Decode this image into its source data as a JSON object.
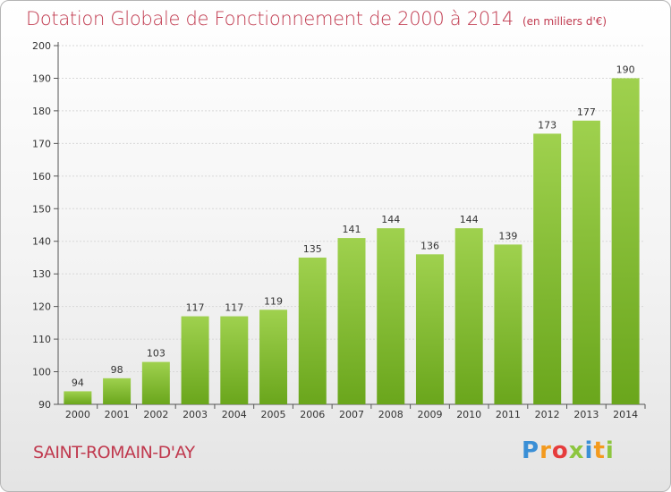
{
  "header": {
    "title": "Dotation Globale de Fonctionnement de 2000 à 2014",
    "unit": "(en milliers d'€)"
  },
  "commune": "SAINT-ROMAIN-D'AY",
  "brand": {
    "logo_text": "Proxiti",
    "letters": [
      {
        "ch": "P",
        "color": "#3a8fd6"
      },
      {
        "ch": "r",
        "color": "#f39a1e"
      },
      {
        "ch": "o",
        "color": "#e63c3c"
      },
      {
        "ch": "x",
        "color": "#8dc63f"
      },
      {
        "ch": "i",
        "color": "#3a8fd6"
      },
      {
        "ch": "t",
        "color": "#f39a1e"
      },
      {
        "ch": "i",
        "color": "#8dc63f"
      }
    ]
  },
  "colors": {
    "accent": "#c0394e",
    "bar_top": "#9fd14e",
    "bar_bottom": "#6aa61c"
  },
  "chart_data": {
    "type": "bar",
    "title": "Dotation Globale de Fonctionnement de 2000 à 2014",
    "subtitle": "(en milliers d'€)",
    "xlabel": "",
    "ylabel": "",
    "categories": [
      "2000",
      "2001",
      "2002",
      "2003",
      "2004",
      "2005",
      "2006",
      "2007",
      "2008",
      "2009",
      "2010",
      "2011",
      "2012",
      "2013",
      "2014"
    ],
    "values": [
      94,
      98,
      103,
      117,
      117,
      119,
      135,
      141,
      144,
      136,
      144,
      139,
      173,
      177,
      190
    ],
    "ylim": [
      90,
      200
    ],
    "yticks": [
      90,
      100,
      110,
      120,
      130,
      140,
      150,
      160,
      170,
      180,
      190,
      200
    ],
    "grid": true
  }
}
